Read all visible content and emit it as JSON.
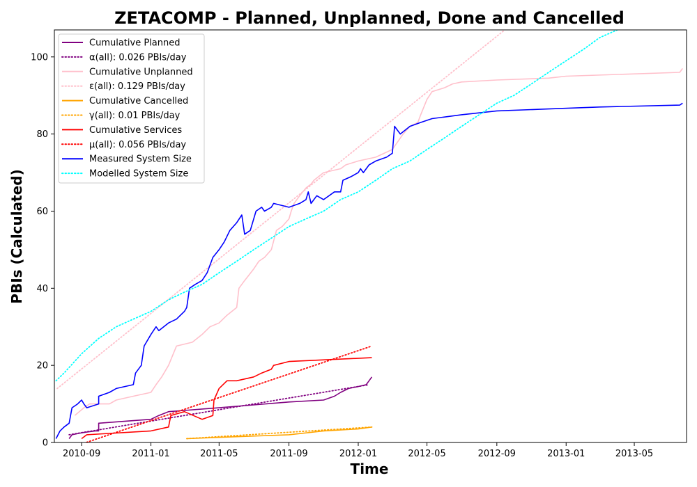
{
  "chart_data": {
    "type": "line",
    "title": "ZETACOMP - Planned, Unplanned, Done  and Cancelled",
    "xlabel": "Time",
    "ylabel": "PBIs (Calculated)",
    "x_axis_type": "date",
    "xlim": [
      "2010-07-15",
      "2013-08-01"
    ],
    "ylim": [
      0,
      107
    ],
    "x_ticks": [
      "2010-09",
      "2011-01",
      "2011-05",
      "2011-09",
      "2012-01",
      "2012-05",
      "2012-09",
      "2013-01",
      "2013-05"
    ],
    "y_ticks": [
      0,
      20,
      40,
      60,
      80,
      100
    ],
    "grid": false,
    "legend_position": "upper-left",
    "colors": {
      "planned": "#800080",
      "unplanned": "#ffc0cb",
      "cancelled": "#ffa500",
      "services": "#ff0000",
      "measured": "#0000ff",
      "modelled": "#00ffff"
    },
    "series": [
      {
        "name": "Cumulative Planned",
        "style": "solid",
        "color": "#800080",
        "points": [
          [
            "2010-08-10",
            1
          ],
          [
            "2010-08-15",
            2
          ],
          [
            "2010-09-01",
            2.5
          ],
          [
            "2010-09-25",
            3
          ],
          [
            "2010-10-01",
            3
          ],
          [
            "2010-10-01",
            5
          ],
          [
            "2011-01-01",
            6
          ],
          [
            "2011-01-15",
            7
          ],
          [
            "2011-02-01",
            8
          ],
          [
            "2011-05-01",
            9
          ],
          [
            "2011-09-01",
            10.5
          ],
          [
            "2011-11-01",
            11
          ],
          [
            "2011-11-20",
            12
          ],
          [
            "2011-12-01",
            13
          ],
          [
            "2011-12-15",
            14
          ],
          [
            "2012-01-01",
            14.5
          ],
          [
            "2012-01-15",
            15
          ],
          [
            "2012-01-20",
            16
          ],
          [
            "2012-01-25",
            17
          ]
        ]
      },
      {
        "name": "α(all): 0.026 PBIs/day",
        "style": "dotted",
        "color": "#800080",
        "points": [
          [
            "2010-08-10",
            2
          ],
          [
            "2012-01-20",
            15
          ]
        ]
      },
      {
        "name": "Cumulative Unplanned",
        "style": "solid",
        "color": "#ffc0cb",
        "points": [
          [
            "2010-08-20",
            7
          ],
          [
            "2010-09-05",
            9
          ],
          [
            "2010-09-15",
            10
          ],
          [
            "2010-10-20",
            10
          ],
          [
            "2010-11-01",
            11
          ],
          [
            "2010-12-01",
            12
          ],
          [
            "2011-01-01",
            13
          ],
          [
            "2011-01-10",
            15
          ],
          [
            "2011-01-20",
            17
          ],
          [
            "2011-02-01",
            20
          ],
          [
            "2011-02-15",
            25
          ],
          [
            "2011-03-15",
            26
          ],
          [
            "2011-04-01",
            28
          ],
          [
            "2011-04-15",
            30
          ],
          [
            "2011-05-01",
            31
          ],
          [
            "2011-05-15",
            33
          ],
          [
            "2011-06-01",
            35
          ],
          [
            "2011-06-05",
            40
          ],
          [
            "2011-06-15",
            42
          ],
          [
            "2011-07-01",
            45
          ],
          [
            "2011-07-10",
            47
          ],
          [
            "2011-07-20",
            48
          ],
          [
            "2011-08-01",
            50
          ],
          [
            "2011-08-10",
            55
          ],
          [
            "2011-08-20",
            56
          ],
          [
            "2011-09-01",
            58
          ],
          [
            "2011-09-05",
            60
          ],
          [
            "2011-09-10",
            62
          ],
          [
            "2011-09-20",
            64
          ],
          [
            "2011-10-01",
            66
          ],
          [
            "2011-10-10",
            67
          ],
          [
            "2011-10-15",
            68
          ],
          [
            "2011-11-01",
            70
          ],
          [
            "2011-12-01",
            71
          ],
          [
            "2011-12-10",
            72
          ],
          [
            "2012-01-01",
            73
          ],
          [
            "2012-02-01",
            74
          ],
          [
            "2012-03-01",
            76
          ],
          [
            "2012-03-20",
            80
          ],
          [
            "2012-04-01",
            82
          ],
          [
            "2012-04-15",
            83
          ],
          [
            "2012-04-20",
            85
          ],
          [
            "2012-05-01",
            89
          ],
          [
            "2012-05-10",
            91
          ],
          [
            "2012-06-01",
            92
          ],
          [
            "2012-06-15",
            93
          ],
          [
            "2012-07-01",
            93.5
          ],
          [
            "2012-09-01",
            94
          ],
          [
            "2012-12-01",
            94.5
          ],
          [
            "2013-01-01",
            95
          ],
          [
            "2013-07-20",
            96
          ],
          [
            "2013-07-25",
            97
          ]
        ]
      },
      {
        "name": "ε(all): 0.129 PBIs/day",
        "style": "dotted",
        "color": "#ffc0cb",
        "points": [
          [
            "2010-07-20",
            14
          ],
          [
            "2012-09-15",
            107
          ]
        ]
      },
      {
        "name": "Cumulative Cancelled",
        "style": "solid",
        "color": "#ffa500",
        "points": [
          [
            "2011-03-05",
            1
          ],
          [
            "2011-06-01",
            1.5
          ],
          [
            "2011-09-01",
            2
          ],
          [
            "2011-11-01",
            3
          ],
          [
            "2012-01-01",
            3.5
          ],
          [
            "2012-01-25",
            4
          ]
        ]
      },
      {
        "name": "γ(all): 0.01 PBIs/day",
        "style": "dotted",
        "color": "#ffa500",
        "points": [
          [
            "2011-03-05",
            1
          ],
          [
            "2012-01-25",
            4
          ]
        ]
      },
      {
        "name": "Cumulative Services",
        "style": "solid",
        "color": "#ff0000",
        "points": [
          [
            "2010-09-01",
            1
          ],
          [
            "2010-09-10",
            2
          ],
          [
            "2011-01-01",
            3
          ],
          [
            "2011-02-01",
            4
          ],
          [
            "2011-02-05",
            7
          ],
          [
            "2011-03-01",
            8
          ],
          [
            "2011-04-01",
            6
          ],
          [
            "2011-04-20",
            7
          ],
          [
            "2011-04-22",
            11
          ],
          [
            "2011-05-01",
            14
          ],
          [
            "2011-05-15",
            16
          ],
          [
            "2011-06-01",
            16
          ],
          [
            "2011-07-01",
            17
          ],
          [
            "2011-07-15",
            18
          ],
          [
            "2011-08-01",
            19
          ],
          [
            "2011-08-05",
            20
          ],
          [
            "2011-09-01",
            21
          ],
          [
            "2012-01-25",
            22
          ]
        ]
      },
      {
        "name": "μ(all): 0.056 PBIs/day",
        "style": "dotted",
        "color": "#ff0000",
        "points": [
          [
            "2010-08-20",
            -1
          ],
          [
            "2012-01-25",
            25
          ]
        ]
      },
      {
        "name": "Measured System Size",
        "style": "solid",
        "color": "#0000ff",
        "points": [
          [
            "2010-07-18",
            1
          ],
          [
            "2010-07-25",
            3
          ],
          [
            "2010-08-01",
            4
          ],
          [
            "2010-08-10",
            5
          ],
          [
            "2010-08-15",
            9
          ],
          [
            "2010-08-25",
            10
          ],
          [
            "2010-09-01",
            11
          ],
          [
            "2010-09-05",
            10
          ],
          [
            "2010-09-10",
            9
          ],
          [
            "2010-10-01",
            10
          ],
          [
            "2010-10-01",
            12
          ],
          [
            "2010-10-20",
            13
          ],
          [
            "2010-11-01",
            14
          ],
          [
            "2010-12-01",
            15
          ],
          [
            "2010-12-05",
            18
          ],
          [
            "2010-12-15",
            20
          ],
          [
            "2010-12-20",
            25
          ],
          [
            "2011-01-01",
            28
          ],
          [
            "2011-01-10",
            30
          ],
          [
            "2011-01-15",
            29
          ],
          [
            "2011-02-01",
            31
          ],
          [
            "2011-02-15",
            32
          ],
          [
            "2011-03-01",
            34
          ],
          [
            "2011-03-05",
            35
          ],
          [
            "2011-03-10",
            40
          ],
          [
            "2011-03-20",
            41
          ],
          [
            "2011-04-01",
            42
          ],
          [
            "2011-04-10",
            44
          ],
          [
            "2011-04-20",
            48
          ],
          [
            "2011-05-01",
            50
          ],
          [
            "2011-05-10",
            52
          ],
          [
            "2011-05-20",
            55
          ],
          [
            "2011-06-01",
            57
          ],
          [
            "2011-06-10",
            59
          ],
          [
            "2011-06-15",
            54
          ],
          [
            "2011-06-25",
            55
          ],
          [
            "2011-07-05",
            60
          ],
          [
            "2011-07-15",
            61
          ],
          [
            "2011-07-20",
            60
          ],
          [
            "2011-08-01",
            61
          ],
          [
            "2011-08-05",
            62
          ],
          [
            "2011-09-01",
            61
          ],
          [
            "2011-09-20",
            62
          ],
          [
            "2011-10-01",
            63
          ],
          [
            "2011-10-05",
            65
          ],
          [
            "2011-10-10",
            62
          ],
          [
            "2011-10-20",
            64
          ],
          [
            "2011-11-01",
            63
          ],
          [
            "2011-11-20",
            65
          ],
          [
            "2011-12-01",
            65
          ],
          [
            "2011-12-05",
            68
          ],
          [
            "2011-12-20",
            69
          ],
          [
            "2012-01-01",
            70
          ],
          [
            "2012-01-05",
            71
          ],
          [
            "2012-01-10",
            70
          ],
          [
            "2012-01-20",
            72
          ],
          [
            "2012-02-01",
            73
          ],
          [
            "2012-02-20",
            74
          ],
          [
            "2012-03-01",
            75
          ],
          [
            "2012-03-05",
            82
          ],
          [
            "2012-03-15",
            80
          ],
          [
            "2012-04-01",
            82
          ],
          [
            "2012-04-20",
            83
          ],
          [
            "2012-05-10",
            84
          ],
          [
            "2012-07-01",
            85
          ],
          [
            "2012-09-01",
            86
          ],
          [
            "2012-12-01",
            86.5
          ],
          [
            "2013-03-01",
            87
          ],
          [
            "2013-07-20",
            87.5
          ],
          [
            "2013-07-25",
            88
          ]
        ]
      },
      {
        "name": "Modelled System Size",
        "style": "dotted",
        "color": "#00ffff",
        "points": [
          [
            "2010-07-18",
            16
          ],
          [
            "2010-08-01",
            18
          ],
          [
            "2010-09-01",
            23
          ],
          [
            "2010-10-01",
            27
          ],
          [
            "2010-11-01",
            30
          ],
          [
            "2010-12-01",
            32
          ],
          [
            "2011-01-01",
            34
          ],
          [
            "2011-02-01",
            37
          ],
          [
            "2011-03-01",
            39
          ],
          [
            "2011-04-01",
            41
          ],
          [
            "2011-05-01",
            44
          ],
          [
            "2011-06-01",
            47
          ],
          [
            "2011-07-01",
            50
          ],
          [
            "2011-08-01",
            53
          ],
          [
            "2011-09-01",
            56
          ],
          [
            "2011-10-01",
            58
          ],
          [
            "2011-11-01",
            60
          ],
          [
            "2011-12-01",
            63
          ],
          [
            "2012-01-01",
            65
          ],
          [
            "2012-02-01",
            68
          ],
          [
            "2012-03-01",
            71
          ],
          [
            "2012-04-01",
            73
          ],
          [
            "2012-05-01",
            76
          ],
          [
            "2012-06-01",
            79
          ],
          [
            "2012-07-01",
            82
          ],
          [
            "2012-08-01",
            85
          ],
          [
            "2012-09-01",
            88
          ],
          [
            "2012-10-01",
            90
          ],
          [
            "2012-11-01",
            93
          ],
          [
            "2012-12-01",
            96
          ],
          [
            "2013-01-01",
            99
          ],
          [
            "2013-02-01",
            102
          ],
          [
            "2013-03-01",
            105
          ],
          [
            "2013-04-01",
            107
          ]
        ]
      }
    ]
  }
}
